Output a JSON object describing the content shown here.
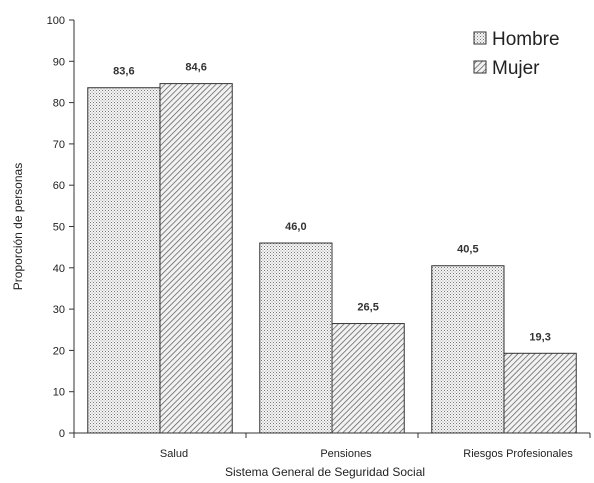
{
  "chart_data": {
    "type": "bar",
    "title": "",
    "xlabel": "Sistema General de Seguridad Social",
    "ylabel": "Proporción de personas",
    "ylim": [
      0,
      100
    ],
    "yticks": [
      0,
      10,
      20,
      30,
      40,
      50,
      60,
      70,
      80,
      90,
      100
    ],
    "categories": [
      "Salud",
      "Pensiones",
      "Riesgos Profesionales"
    ],
    "series": [
      {
        "name": "Hombre",
        "values": [
          83.6,
          46.0,
          40.5
        ],
        "labels": [
          "83,6",
          "46,0",
          "40,5"
        ],
        "pattern": "dots"
      },
      {
        "name": "Mujer",
        "values": [
          84.6,
          26.5,
          19.3
        ],
        "labels": [
          "84,6",
          "26,5",
          "19,3"
        ],
        "pattern": "hatch"
      }
    ],
    "legend_position": "top-right",
    "grid": false
  }
}
